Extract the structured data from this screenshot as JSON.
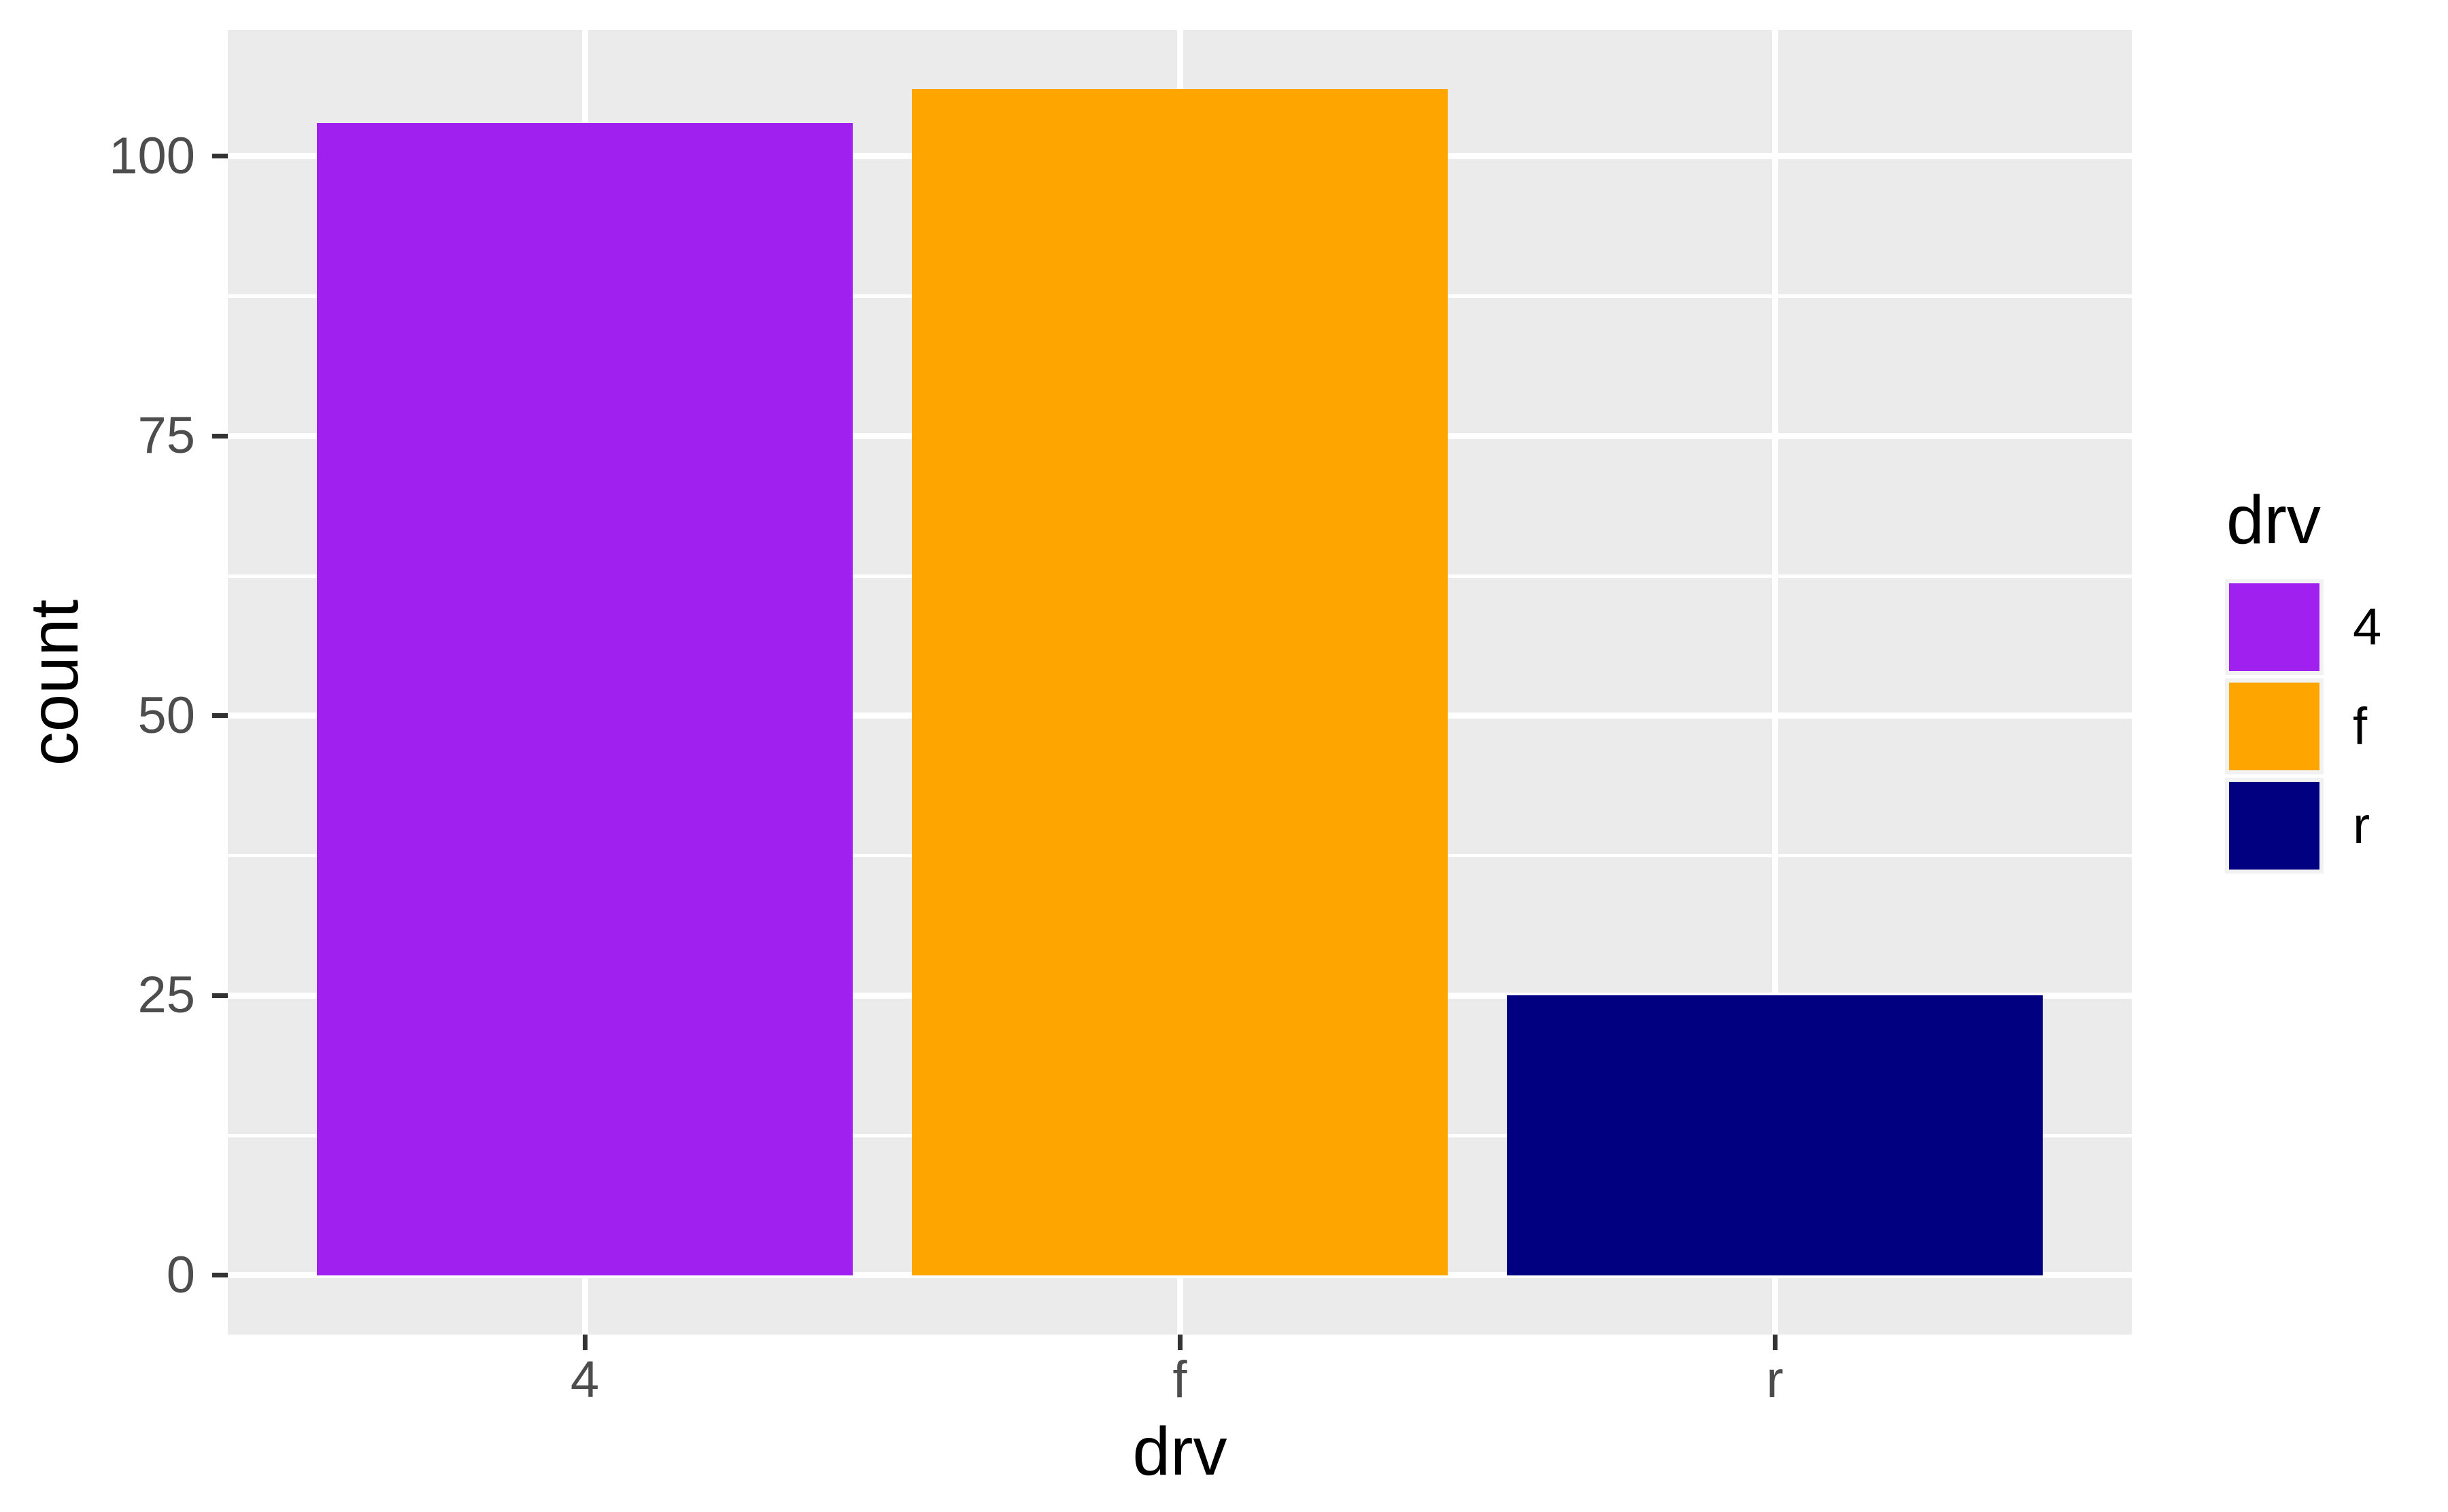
{
  "chart_data": {
    "type": "bar",
    "categories": [
      "4",
      "f",
      "r"
    ],
    "values": [
      103,
      106,
      25
    ],
    "colors": [
      "#A020F0",
      "#FFA500",
      "#000080"
    ],
    "xlabel": "drv",
    "ylabel": "count",
    "y_ticks": [
      0,
      25,
      50,
      75,
      100
    ],
    "y_minor_ticks": [
      12.5,
      37.5,
      62.5,
      87.5
    ],
    "ylim": [
      -5.3,
      111.3
    ],
    "xlim": [
      0.4,
      3.6
    ],
    "bar_width_fraction": 0.9,
    "grid": "major-and-minor",
    "legend": {
      "title": "drv",
      "position": "right",
      "items": [
        {
          "label": "4",
          "color": "#A020F0"
        },
        {
          "label": "f",
          "color": "#FFA500"
        },
        {
          "label": "r",
          "color": "#000080"
        }
      ]
    },
    "panel_background": "#EBEBEB",
    "gridline_color": "#FFFFFF",
    "tick_color": "#333333",
    "tick_label_color": "#4D4D4D",
    "axis_title_color": "#000000",
    "legend_key_background": "#F2F2F2",
    "legend_label_color": "#000000"
  }
}
